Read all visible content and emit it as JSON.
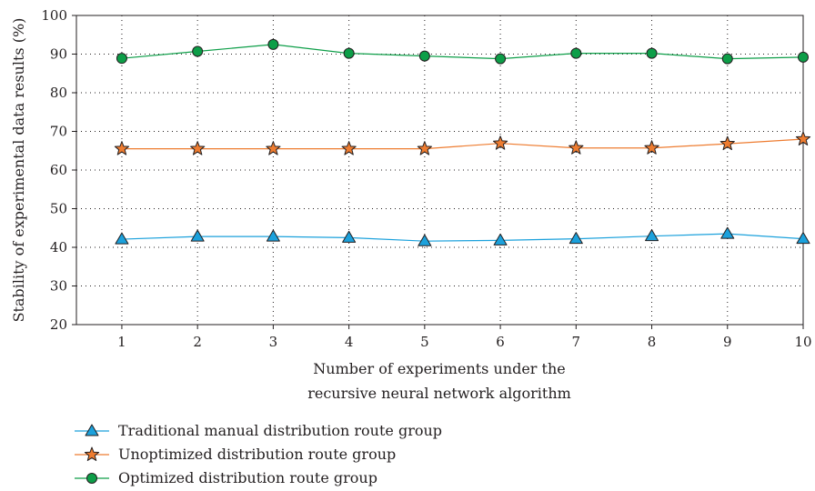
{
  "chart_data": {
    "type": "line",
    "x": [
      1,
      2,
      3,
      4,
      5,
      6,
      7,
      8,
      9,
      10
    ],
    "xlim": [
      0.4,
      10
    ],
    "ylim": [
      20,
      100
    ],
    "yticks": [
      20,
      30,
      40,
      50,
      60,
      70,
      80,
      90,
      100
    ],
    "xlabel": [
      "Number of experiments under the",
      "recursive neural network algorithm"
    ],
    "ylabel": "Stability of experimental data results (%)",
    "grid": true,
    "legend_position": "bottom-left",
    "series": [
      {
        "name": "Traditional manual distribution route group",
        "values": [
          42.1,
          42.8,
          42.8,
          42.5,
          41.6,
          41.8,
          42.2,
          42.9,
          43.5,
          42.2
        ],
        "color": "#1ba1dc",
        "marker": "triangle-icon"
      },
      {
        "name": "Unoptimized distribution route group",
        "values": [
          65.5,
          65.5,
          65.5,
          65.5,
          65.5,
          66.9,
          65.7,
          65.7,
          66.8,
          68.0
        ],
        "color": "#ee7c30",
        "marker": "star-icon"
      },
      {
        "name": "Optimized distribution route group",
        "values": [
          88.9,
          90.7,
          92.5,
          90.2,
          89.5,
          88.8,
          90.2,
          90.2,
          88.8,
          89.2
        ],
        "color": "#0d9e48",
        "marker": "circle-icon"
      }
    ]
  }
}
